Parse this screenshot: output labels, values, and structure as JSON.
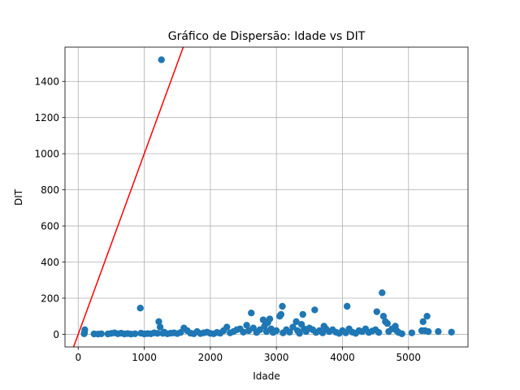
{
  "chart_data": {
    "type": "scatter",
    "title": "Gráfico de Dispersão: Idade vs DIT",
    "xlabel": "Idade",
    "ylabel": "DIT",
    "xlim": [
      -200,
      5900
    ],
    "ylim": [
      -70,
      1590
    ],
    "xticks": [
      0,
      1000,
      2000,
      3000,
      4000,
      5000
    ],
    "yticks": [
      0,
      200,
      400,
      600,
      800,
      1000,
      1200,
      1400
    ],
    "grid": true,
    "legend": "none",
    "colors": {
      "points": "#1f77b4",
      "reference_line": "#ff0000",
      "grid": "#b0b0b0"
    },
    "reference_line": {
      "type": "y = x"
    },
    "series": [
      {
        "points": [
          [
            100,
            25
          ],
          [
            95,
            10
          ],
          [
            90,
            3
          ],
          [
            240,
            2
          ],
          [
            300,
            1
          ],
          [
            350,
            3
          ],
          [
            450,
            2
          ],
          [
            500,
            5
          ],
          [
            550,
            8
          ],
          [
            600,
            3
          ],
          [
            650,
            6
          ],
          [
            700,
            2
          ],
          [
            750,
            4
          ],
          [
            800,
            1
          ],
          [
            860,
            3
          ],
          [
            940,
            145
          ],
          [
            950,
            6
          ],
          [
            1000,
            2
          ],
          [
            1050,
            4
          ],
          [
            1100,
            3
          ],
          [
            1150,
            8
          ],
          [
            1200,
            5
          ],
          [
            1220,
            70
          ],
          [
            1240,
            40
          ],
          [
            1260,
            1520
          ],
          [
            1280,
            5
          ],
          [
            1300,
            12
          ],
          [
            1350,
            3
          ],
          [
            1400,
            6
          ],
          [
            1450,
            8
          ],
          [
            1500,
            4
          ],
          [
            1550,
            10
          ],
          [
            1600,
            35
          ],
          [
            1650,
            20
          ],
          [
            1700,
            6
          ],
          [
            1750,
            3
          ],
          [
            1800,
            15
          ],
          [
            1850,
            4
          ],
          [
            1900,
            8
          ],
          [
            1950,
            12
          ],
          [
            2000,
            5
          ],
          [
            2050,
            3
          ],
          [
            2100,
            10
          ],
          [
            2150,
            6
          ],
          [
            2200,
            20
          ],
          [
            2250,
            40
          ],
          [
            2300,
            8
          ],
          [
            2350,
            15
          ],
          [
            2400,
            25
          ],
          [
            2450,
            30
          ],
          [
            2500,
            12
          ],
          [
            2550,
            50
          ],
          [
            2580,
            20
          ],
          [
            2620,
            118
          ],
          [
            2650,
            35
          ],
          [
            2700,
            10
          ],
          [
            2750,
            25
          ],
          [
            2800,
            80
          ],
          [
            2820,
            45
          ],
          [
            2850,
            15
          ],
          [
            2870,
            65
          ],
          [
            2900,
            85
          ],
          [
            2920,
            30
          ],
          [
            2950,
            10
          ],
          [
            3000,
            20
          ],
          [
            3050,
            100
          ],
          [
            3070,
            110
          ],
          [
            3090,
            155
          ],
          [
            3100,
            8
          ],
          [
            3150,
            25
          ],
          [
            3200,
            12
          ],
          [
            3250,
            40
          ],
          [
            3300,
            70
          ],
          [
            3320,
            20
          ],
          [
            3350,
            5
          ],
          [
            3380,
            55
          ],
          [
            3400,
            110
          ],
          [
            3420,
            30
          ],
          [
            3450,
            15
          ],
          [
            3500,
            35
          ],
          [
            3550,
            25
          ],
          [
            3580,
            135
          ],
          [
            3600,
            10
          ],
          [
            3650,
            20
          ],
          [
            3700,
            8
          ],
          [
            3720,
            45
          ],
          [
            3750,
            30
          ],
          [
            3800,
            15
          ],
          [
            3850,
            25
          ],
          [
            3900,
            12
          ],
          [
            3950,
            5
          ],
          [
            4000,
            20
          ],
          [
            4050,
            8
          ],
          [
            4070,
            155
          ],
          [
            4100,
            30
          ],
          [
            4150,
            12
          ],
          [
            4200,
            5
          ],
          [
            4250,
            20
          ],
          [
            4300,
            15
          ],
          [
            4350,
            30
          ],
          [
            4400,
            10
          ],
          [
            4450,
            18
          ],
          [
            4500,
            25
          ],
          [
            4520,
            125
          ],
          [
            4550,
            10
          ],
          [
            4600,
            230
          ],
          [
            4620,
            100
          ],
          [
            4650,
            70
          ],
          [
            4680,
            60
          ],
          [
            4700,
            15
          ],
          [
            4750,
            30
          ],
          [
            4800,
            45
          ],
          [
            4820,
            20
          ],
          [
            4850,
            10
          ],
          [
            4900,
            3
          ],
          [
            5050,
            8
          ],
          [
            5200,
            20
          ],
          [
            5220,
            70
          ],
          [
            5250,
            20
          ],
          [
            5280,
            100
          ],
          [
            5300,
            15
          ],
          [
            5450,
            15
          ],
          [
            5650,
            12
          ]
        ]
      }
    ]
  }
}
